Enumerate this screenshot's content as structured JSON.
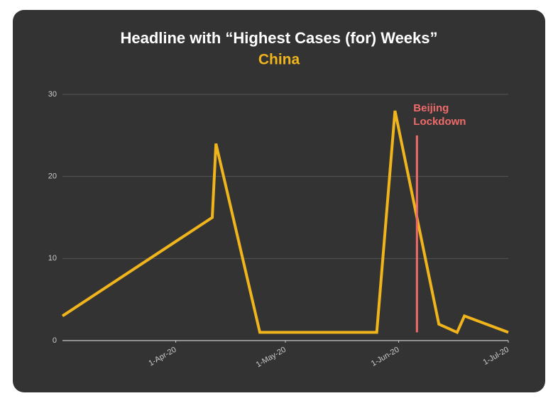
{
  "chart_data": {
    "type": "line",
    "title": "Headline with “Highest Cases (for) Weeks”",
    "subtitle": "China",
    "x": [
      "2020-03-01",
      "2020-04-11",
      "2020-04-12",
      "2020-04-24",
      "2020-05-26",
      "2020-05-31",
      "2020-06-12",
      "2020-06-17",
      "2020-06-19",
      "2020-07-01"
    ],
    "values": [
      3,
      15,
      24,
      1,
      1,
      28,
      2,
      1,
      3,
      1
    ],
    "color": "#f0b41c",
    "xlim": [
      "2020-03-01",
      "2020-07-01"
    ],
    "xticks": [
      {
        "value": "2020-04-01",
        "label": "1-Apr-20"
      },
      {
        "value": "2020-05-01",
        "label": "1-May-20"
      },
      {
        "value": "2020-06-01",
        "label": "1-Jun-20"
      },
      {
        "value": "2020-07-01",
        "label": "1-Jul-20"
      }
    ],
    "ylim": [
      0,
      30
    ],
    "yticks": [
      0,
      10,
      20,
      30
    ],
    "grid": true,
    "annotation": {
      "lines": [
        "Beijing",
        "Lockdown"
      ],
      "x": "2020-06-06",
      "y": [
        1,
        25
      ],
      "color": "#f06a6a"
    }
  }
}
